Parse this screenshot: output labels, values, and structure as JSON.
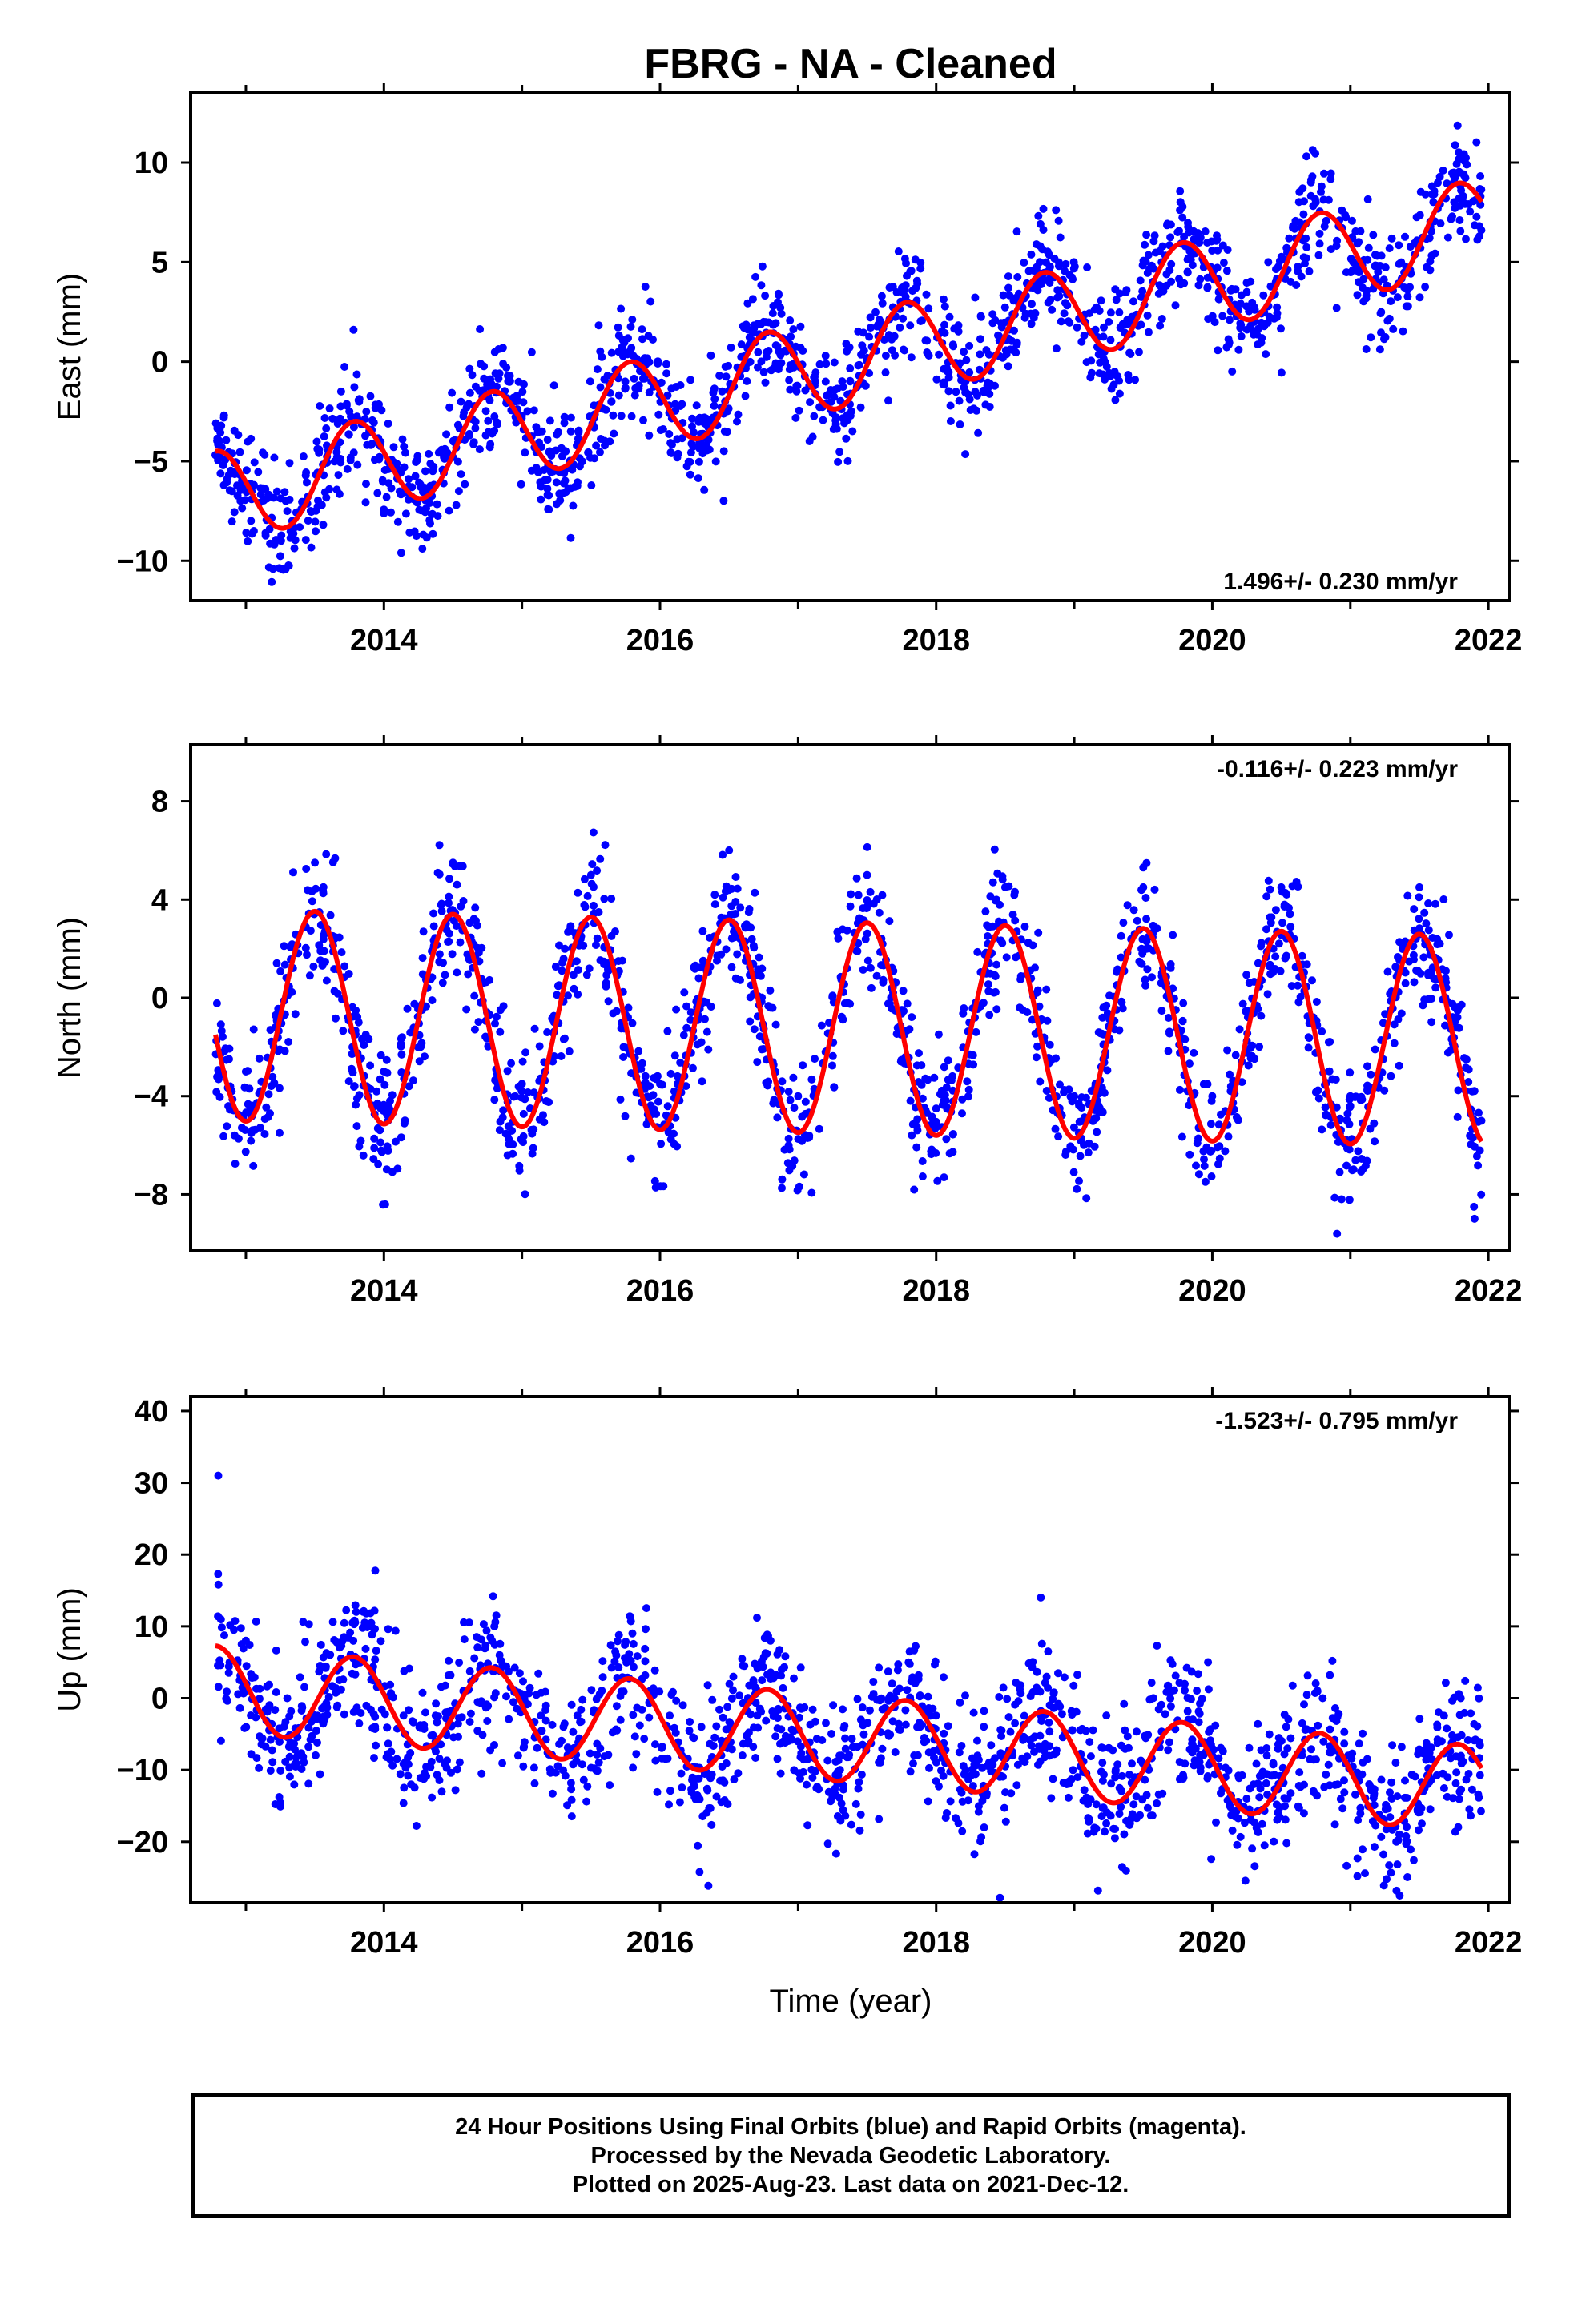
{
  "title": "FBRG  - NA - Cleaned",
  "footer": {
    "line1": "24 Hour Positions Using Final Orbits (blue) and Rapid Orbits (magenta).",
    "line2": "Processed by the Nevada Geodetic Laboratory.",
    "line3": "Plotted on 2025-Aug-23. Last data on 2021-Dec-12."
  },
  "colors": {
    "points": "#0000ff",
    "model": "#ff0000",
    "axes": "#000000"
  },
  "chart_data": [
    {
      "type": "scatter",
      "ylabel": "East (mm)",
      "xlim": [
        2012.6,
        2022.15
      ],
      "ylim": [
        -12,
        13.5
      ],
      "xticks": [
        2014,
        2016,
        2018,
        2020,
        2022
      ],
      "yticks": [
        -10,
        -5,
        0,
        5,
        10
      ],
      "rate_label": "1.496+/- 0.230 mm/yr",
      "rate_position": "bottom-right",
      "data_range": [
        2012.78,
        2021.95
      ],
      "model": {
        "rate": 1.496,
        "value_at_start": -4.5,
        "annual_amplitude": 2.3,
        "peak_phase": 0.78
      },
      "sample_points": [
        [
          2012.9,
          -6.5
        ],
        [
          2013.3,
          -7.5
        ],
        [
          2013.75,
          -2.5
        ],
        [
          2014.3,
          -5.5
        ],
        [
          2014.75,
          -1.0
        ],
        [
          2015.2,
          -4.5
        ],
        [
          2015.7,
          0.5
        ],
        [
          2016.3,
          -3.0
        ],
        [
          2016.75,
          2.0
        ],
        [
          2017.2,
          -1.0
        ],
        [
          2017.75,
          3.5
        ],
        [
          2018.2,
          0.5
        ],
        [
          2018.75,
          5.0
        ],
        [
          2019.25,
          2.0
        ],
        [
          2019.75,
          6.5
        ],
        [
          2020.25,
          3.5
        ],
        [
          2020.75,
          8.0
        ],
        [
          2021.2,
          4.5
        ],
        [
          2021.75,
          9.5
        ]
      ],
      "series": [
        {
          "name": "",
          "style": "points"
        },
        {
          "name": "",
          "style": "line"
        }
      ]
    },
    {
      "type": "scatter",
      "ylabel": "North (mm)",
      "xlim": [
        2012.6,
        2022.15
      ],
      "ylim": [
        -10.3,
        10.3
      ],
      "xticks": [
        2014,
        2016,
        2018,
        2020,
        2022
      ],
      "yticks": [
        -8,
        -4,
        0,
        4,
        8
      ],
      "rate_label": "-0.116+/- 0.223 mm/yr",
      "rate_position": "top-right",
      "data_range": [
        2012.78,
        2021.95
      ],
      "model": {
        "rate": -0.116,
        "value_at_start": -1.5,
        "annual_amplitude": 4.3,
        "peak_phase": 0.5
      },
      "sample_points": [
        [
          2013.0,
          -3.0
        ],
        [
          2013.5,
          5.5
        ],
        [
          2014.0,
          -3.0
        ],
        [
          2014.5,
          5.5
        ],
        [
          2015.0,
          -3.5
        ],
        [
          2015.5,
          5.0
        ],
        [
          2016.0,
          -3.5
        ],
        [
          2016.5,
          6.0
        ],
        [
          2017.0,
          -4.0
        ],
        [
          2017.5,
          5.0
        ],
        [
          2018.0,
          -4.5
        ],
        [
          2018.5,
          4.5
        ],
        [
          2019.0,
          -4.0
        ],
        [
          2019.5,
          4.5
        ],
        [
          2020.0,
          -4.0
        ],
        [
          2020.5,
          4.5
        ],
        [
          2021.0,
          -4.0
        ],
        [
          2021.5,
          4.5
        ],
        [
          2021.95,
          -5.0
        ]
      ],
      "series": [
        {
          "name": "",
          "style": "points"
        },
        {
          "name": "",
          "style": "line"
        }
      ]
    },
    {
      "type": "scatter",
      "xlabel": "Time (year)",
      "ylabel": "Up (mm)",
      "xlim": [
        2012.6,
        2022.15
      ],
      "ylim": [
        -28.5,
        42
      ],
      "xticks": [
        2014,
        2016,
        2018,
        2020,
        2022
      ],
      "yticks": [
        -20,
        -10,
        0,
        10,
        20,
        30,
        40
      ],
      "rate_label": "-1.523+/- 0.795 mm/yr",
      "rate_position": "top-right",
      "data_range": [
        2012.78,
        2021.95
      ],
      "model": {
        "rate": -1.523,
        "value_at_start": 7.3,
        "annual_amplitude": 6.0,
        "peak_phase": 0.78
      },
      "sample_points": [
        [
          2012.8,
          31.0
        ],
        [
          2013.0,
          8.0
        ],
        [
          2013.3,
          0.0
        ],
        [
          2013.8,
          12.0
        ],
        [
          2014.3,
          -2.0
        ],
        [
          2014.8,
          10.0
        ],
        [
          2015.3,
          -4.0
        ],
        [
          2015.8,
          9.0
        ],
        [
          2016.3,
          -4.0
        ],
        [
          2016.8,
          8.0
        ],
        [
          2017.3,
          -8.0
        ],
        [
          2017.8,
          5.0
        ],
        [
          2018.3,
          -8.0
        ],
        [
          2018.8,
          3.0
        ],
        [
          2019.3,
          -10.0
        ],
        [
          2019.8,
          2.0
        ],
        [
          2020.3,
          -12.0
        ],
        [
          2020.8,
          0.0
        ],
        [
          2021.3,
          -14.0
        ],
        [
          2021.8,
          0.0
        ]
      ],
      "series": [
        {
          "name": "",
          "style": "points"
        },
        {
          "name": "",
          "style": "line"
        }
      ]
    }
  ]
}
